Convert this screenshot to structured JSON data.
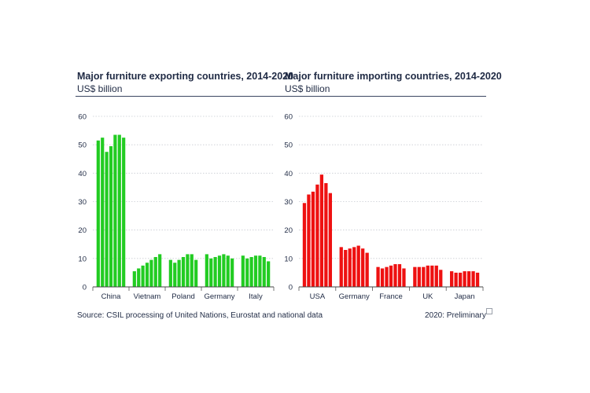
{
  "chart_data": [
    {
      "type": "bar",
      "title": "Major furniture exporting countries, 2014-2020",
      "subtitle": "US$ billion",
      "color": "#22cc22",
      "ylim": [
        0,
        60
      ],
      "yticks": [
        "0",
        "10",
        "20",
        "30",
        "40",
        "50",
        "60"
      ],
      "grid": true,
      "categories": [
        "China",
        "Vietnam",
        "Poland",
        "Germany",
        "Italy"
      ],
      "values": [
        [
          51.5,
          52.5,
          47.5,
          49.5,
          53.5,
          53.5,
          52.5
        ],
        [
          5.5,
          6.5,
          7.5,
          8.5,
          9.5,
          10.5,
          11.5
        ],
        [
          9.5,
          8.5,
          9.5,
          10.5,
          11.5,
          11.5,
          9.5
        ],
        [
          11.5,
          10,
          10.5,
          11,
          11.5,
          11,
          10
        ],
        [
          11,
          10,
          10.5,
          11,
          11,
          10.5,
          9
        ]
      ]
    },
    {
      "type": "bar",
      "title": "Major furniture importing countries, 2014-2020",
      "subtitle": "US$ billion",
      "color": "#ee1111",
      "ylim": [
        0,
        60
      ],
      "yticks": [
        "0",
        "10",
        "20",
        "30",
        "40",
        "50",
        "60"
      ],
      "grid": true,
      "categories": [
        "USA",
        "Germany",
        "France",
        "UK",
        "Japan"
      ],
      "values": [
        [
          29.5,
          32.5,
          33.5,
          36,
          39.5,
          36.5,
          33
        ],
        [
          14,
          13,
          13.5,
          14,
          14.5,
          13.5,
          12
        ],
        [
          7,
          6.5,
          7,
          7.5,
          8,
          8,
          6.5
        ],
        [
          7,
          7,
          7,
          7.5,
          7.5,
          7.5,
          6
        ],
        [
          5.5,
          5,
          5,
          5.5,
          5.5,
          5.5,
          5
        ]
      ]
    }
  ],
  "footer": {
    "source": "Source: CSIL processing of United Nations, Eurostat and national data",
    "note": "2020: Preliminary"
  }
}
